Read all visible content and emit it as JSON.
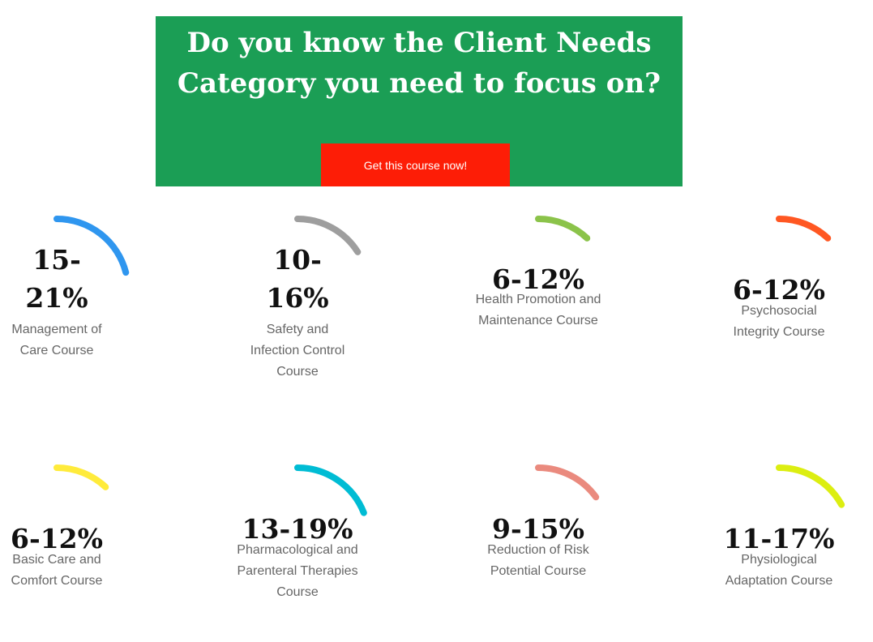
{
  "hero": {
    "title_line1": "Do you know the Client Needs",
    "title_line2": "Category you need to focus on?",
    "cta_label": "Get this course now!",
    "background_color": "#1b9e55",
    "cta_color": "#fd1d06"
  },
  "stats": [
    {
      "value": "15-21%",
      "label": "Management of Care Course",
      "color": "#2f96ef",
      "arc_fraction": 0.21
    },
    {
      "value": "10-16%",
      "label": "Safety and Infection Control Course",
      "color": "#9e9e9e",
      "arc_fraction": 0.16
    },
    {
      "value": "6-12%",
      "label": "Health Promotion and Maintenance Course",
      "color": "#8bc34a",
      "arc_fraction": 0.12
    },
    {
      "value": "6-12%",
      "label": "Psychosocial Integrity Course",
      "color": "#ff5722",
      "arc_fraction": 0.12
    },
    {
      "value": "6-12%",
      "label": "Basic Care and Comfort Course",
      "color": "#ffeb3b",
      "arc_fraction": 0.12
    },
    {
      "value": "13-19%",
      "label": "Pharmacological and Parenteral Therapies Course",
      "color": "#00bcd4",
      "arc_fraction": 0.19
    },
    {
      "value": "9-15%",
      "label": "Reduction of Risk Potential Course",
      "color": "#ea8a7e",
      "arc_fraction": 0.15
    },
    {
      "value": "11-17%",
      "label": "Physiological Adaptation Course",
      "color": "#dcee11",
      "arc_fraction": 0.17
    }
  ]
}
